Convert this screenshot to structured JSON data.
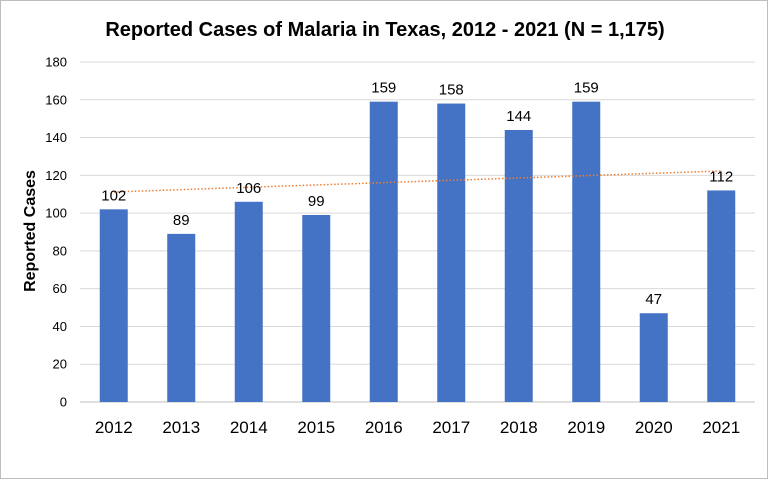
{
  "chart_data": {
    "type": "bar",
    "title": "Reported Cases of Malaria in Texas, 2012 - 2021 (N = 1,175)",
    "xlabel": "",
    "ylabel": "Reported Cases",
    "categories": [
      "2012",
      "2013",
      "2014",
      "2015",
      "2016",
      "2017",
      "2018",
      "2019",
      "2020",
      "2021"
    ],
    "values": [
      102,
      89,
      106,
      99,
      159,
      158,
      144,
      159,
      47,
      112
    ],
    "ylim": [
      0,
      180
    ],
    "yticks": [
      0,
      20,
      40,
      60,
      80,
      100,
      120,
      140,
      160,
      180
    ],
    "grid": true,
    "data_labels": true,
    "trendline": {
      "type": "linear",
      "style": "dotted",
      "start": 111.2,
      "end": 122.3
    },
    "colors": {
      "bar": "#4472c4",
      "trendline": "#ed7d31",
      "grid": "#d9d9d9"
    }
  }
}
